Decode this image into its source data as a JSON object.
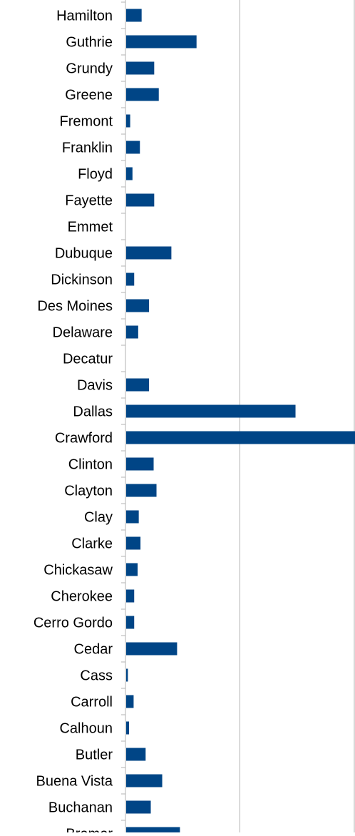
{
  "chart_data": {
    "type": "bar",
    "orientation": "horizontal",
    "categories": [
      "Hamilton",
      "Guthrie",
      "Grundy",
      "Greene",
      "Fremont",
      "Franklin",
      "Floyd",
      "Fayette",
      "Emmet",
      "Dubuque",
      "Dickinson",
      "Des Moines",
      "Delaware",
      "Decatur",
      "Davis",
      "Dallas",
      "Crawford",
      "Clinton",
      "Clayton",
      "Clay",
      "Clarke",
      "Chickasaw",
      "Cherokee",
      "Cerro Gordo",
      "Cedar",
      "Cass",
      "Carroll",
      "Calhoun",
      "Butler",
      "Buena Vista",
      "Buchanan",
      "Bremer"
    ],
    "values": [
      13.5,
      61.5,
      24.5,
      28.5,
      3.5,
      12,
      5.5,
      24.5,
      0,
      39.5,
      7,
      20,
      10.5,
      0,
      20,
      148,
      200,
      24,
      26.5,
      11,
      12.5,
      10,
      7,
      7,
      44.5,
      1.5,
      6.5,
      2.5,
      17,
      31.5,
      21.5,
      47
    ],
    "xlim": [
      0,
      200
    ],
    "grid": true,
    "bar_color": "#004586",
    "grid_color": "#b3b3b3",
    "title": "",
    "xlabel": "",
    "ylabel": ""
  }
}
